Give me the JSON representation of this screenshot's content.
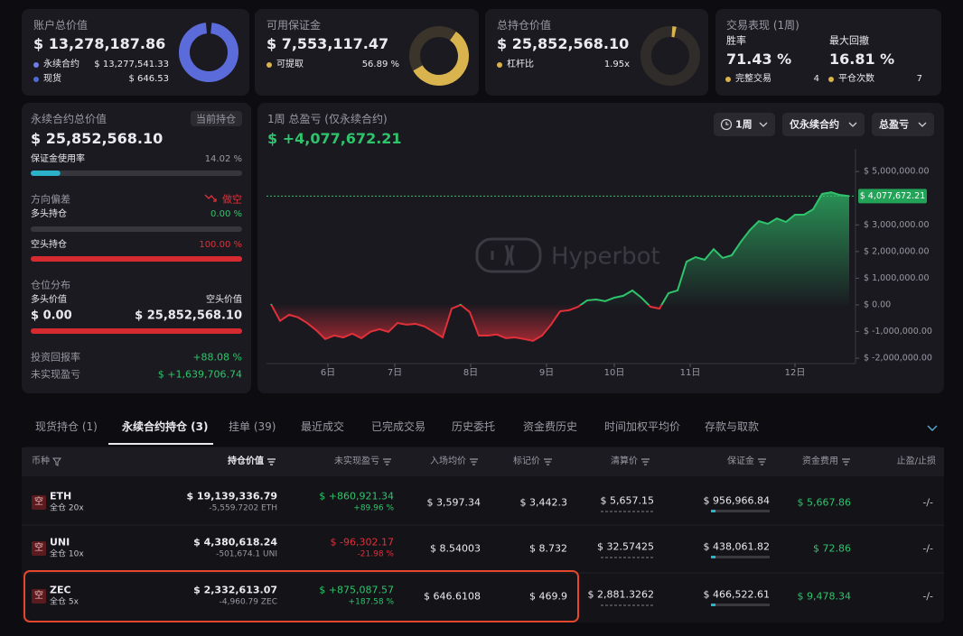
{
  "summary_cards": [
    {
      "title": "账户总价值",
      "value": "$ 13,278,187.86",
      "rows": [
        {
          "label": "永续合约",
          "value": "$ 13,277,541.33"
        },
        {
          "label": "现货",
          "value": "$ 646.53"
        }
      ]
    },
    {
      "title": "可用保证金",
      "value": "$ 7,553,117.47",
      "rows": [
        {
          "label": "可提取",
          "value": "56.89 %"
        }
      ]
    },
    {
      "title": "总持仓价值",
      "value": "$ 25,852,568.10",
      "rows": [
        {
          "label": "杠杆比",
          "value": "1.95x"
        }
      ]
    }
  ],
  "performance": {
    "title": "交易表现 (1周)",
    "stats": [
      {
        "label": "胜率",
        "value": "71.43 %"
      },
      {
        "label": "最大回撤",
        "value": "16.81 %"
      }
    ],
    "rows": [
      {
        "label": "完整交易",
        "value": "4"
      },
      {
        "label": "平仓次数",
        "value": "7"
      }
    ]
  },
  "perp_panel": {
    "title": "永续合约总价值",
    "badge": "当前持仓",
    "value": "$ 25,852,568.10",
    "margin_usage": {
      "label": "保证金使用率",
      "value": 14.02,
      "value_label": "14.02 %"
    },
    "direction": {
      "label": "方向偏差",
      "value": "做空"
    },
    "long": {
      "label": "多头持仓",
      "value": 0,
      "value_label": "0.00 %"
    },
    "short": {
      "label": "空头持仓",
      "value": 100,
      "value_label": "100.00 %"
    },
    "distribution": {
      "label": "仓位分布",
      "long_label": "多头价值",
      "short_label": "空头价值",
      "long_value": "$ 0.00",
      "short_value": "$ 25,852,568.10"
    },
    "roi": {
      "label": "投资回报率",
      "value": "+88.08 %"
    },
    "unrealized": {
      "label": "未实现盈亏",
      "value": "$ +1,639,706.74"
    }
  },
  "pnl_panel": {
    "title": "1周 总盈亏 (仅永续合约)",
    "value": "$ +4,077,672.21",
    "buttons": [
      "1周",
      "仅永续合约",
      "总盈亏"
    ],
    "watermark": "Hyperbot"
  },
  "chart_data": {
    "type": "line",
    "x": [
      0,
      1,
      2,
      3,
      4,
      5,
      6,
      7,
      8,
      9,
      10,
      11,
      12,
      13,
      14,
      15,
      16,
      17,
      18,
      19,
      20,
      21,
      22,
      23,
      24,
      25,
      26,
      27,
      28,
      29,
      30,
      31,
      32,
      33,
      34,
      35,
      36,
      37,
      38,
      39,
      40,
      41,
      42,
      43,
      44,
      45,
      46,
      47,
      48,
      49,
      50,
      51,
      52,
      53,
      54,
      55,
      56,
      57,
      58,
      59,
      60,
      61,
      62,
      63,
      64
    ],
    "values": [
      30000,
      -600000,
      -370000,
      -470000,
      -680000,
      -950000,
      -1280000,
      -1150000,
      -1220000,
      -1080000,
      -1250000,
      -1010000,
      -910000,
      -1010000,
      -680000,
      -740000,
      -710000,
      -810000,
      -1010000,
      -1220000,
      -140000,
      0,
      -270000,
      -1150000,
      -1150000,
      -1110000,
      -1250000,
      -1220000,
      -1280000,
      -1350000,
      -1150000,
      -740000,
      -240000,
      -200000,
      -70000,
      170000,
      200000,
      140000,
      270000,
      340000,
      540000,
      270000,
      -70000,
      -140000,
      440000,
      540000,
      1620000,
      1790000,
      1690000,
      2090000,
      1760000,
      1860000,
      2360000,
      2800000,
      3140000,
      3040000,
      3240000,
      3110000,
      3380000,
      3380000,
      3580000,
      4160000,
      4220000,
      4120000,
      4077672.21
    ],
    "xlim": [
      -0.5,
      64.7
    ],
    "xticks": [
      {
        "value": 6.3,
        "label": "6日"
      },
      {
        "value": 13.7,
        "label": "7日"
      },
      {
        "value": 22.1,
        "label": "8日"
      },
      {
        "value": 30.5,
        "label": "9日"
      },
      {
        "value": 38,
        "label": "10日"
      },
      {
        "value": 46.4,
        "label": "11日"
      },
      {
        "value": 58,
        "label": "12日"
      }
    ],
    "ylim": [
      -2200000,
      5850000
    ],
    "yticks": [
      {
        "value": 5000000,
        "label": "$ 5,000,000.00"
      },
      {
        "value": 3000000,
        "label": "$ 3,000,000.00"
      },
      {
        "value": 2000000,
        "label": "$ 2,000,000.00"
      },
      {
        "value": 1000000,
        "label": "$ 1,000,000.00"
      },
      {
        "value": 0,
        "label": "$ 0.00"
      },
      {
        "value": -1000000,
        "label": "$ -1,000,000.00"
      },
      {
        "value": -2000000,
        "label": "$ -2,000,000.00"
      }
    ],
    "colors": {
      "positive": "#2fc46c",
      "negative": "#e0303a"
    },
    "current": {
      "value": 4077672.21,
      "label": "$ 4,077,672.21"
    }
  },
  "tabs": {
    "items": [
      "现货持仓 (1)",
      "永续合约持仓 (3)",
      "挂单 (39)",
      "最近成交",
      "已完成交易",
      "历史委托",
      "资金费历史",
      "时间加权平均价",
      "存款与取款"
    ],
    "active": 1
  },
  "table": {
    "headers": [
      "币种",
      "持仓价值",
      "未实现盈亏",
      "入场均价",
      "标记价",
      "清算价",
      "保证金",
      "资金费用",
      "止盈/止损"
    ],
    "highlight": 2,
    "rows": [
      {
        "side": "空",
        "coin": "ETH",
        "leverage": "全仓 20x",
        "value": "$ 19,139,336.79",
        "size": "-5,559.7202 ETH",
        "pnl": "$ +860,921.34",
        "pnl_pct": "+89.96 %",
        "entry": "$ 3,597.34",
        "mark": "$ 3,442.3",
        "liq": "$ 5,657.15",
        "margin": "$ 956,966.84",
        "funding": "$ 5,667.86",
        "tpsl": "-/-"
      },
      {
        "side": "空",
        "coin": "UNI",
        "leverage": "全仓 10x",
        "value": "$ 4,380,618.24",
        "size": "-501,674.1 UNI",
        "pnl": "$ -96,302.17",
        "pnl_pct": "-21.98 %",
        "entry": "$ 8.54003",
        "mark": "$ 8.732",
        "liq": "$ 32.57425",
        "margin": "$ 438,061.82",
        "funding": "$ 72.86",
        "tpsl": "-/-"
      },
      {
        "side": "空",
        "coin": "ZEC",
        "leverage": "全仓 5x",
        "value": "$ 2,332,613.07",
        "size": "-4,960.79 ZEC",
        "pnl": "$ +875,087.57",
        "pnl_pct": "+187.58 %",
        "entry": "$ 646.6108",
        "mark": "$ 469.9",
        "liq": "$ 2,881.3262",
        "margin": "$ 466,522.61",
        "funding": "$ 9,478.34",
        "tpsl": "-/-"
      }
    ]
  }
}
